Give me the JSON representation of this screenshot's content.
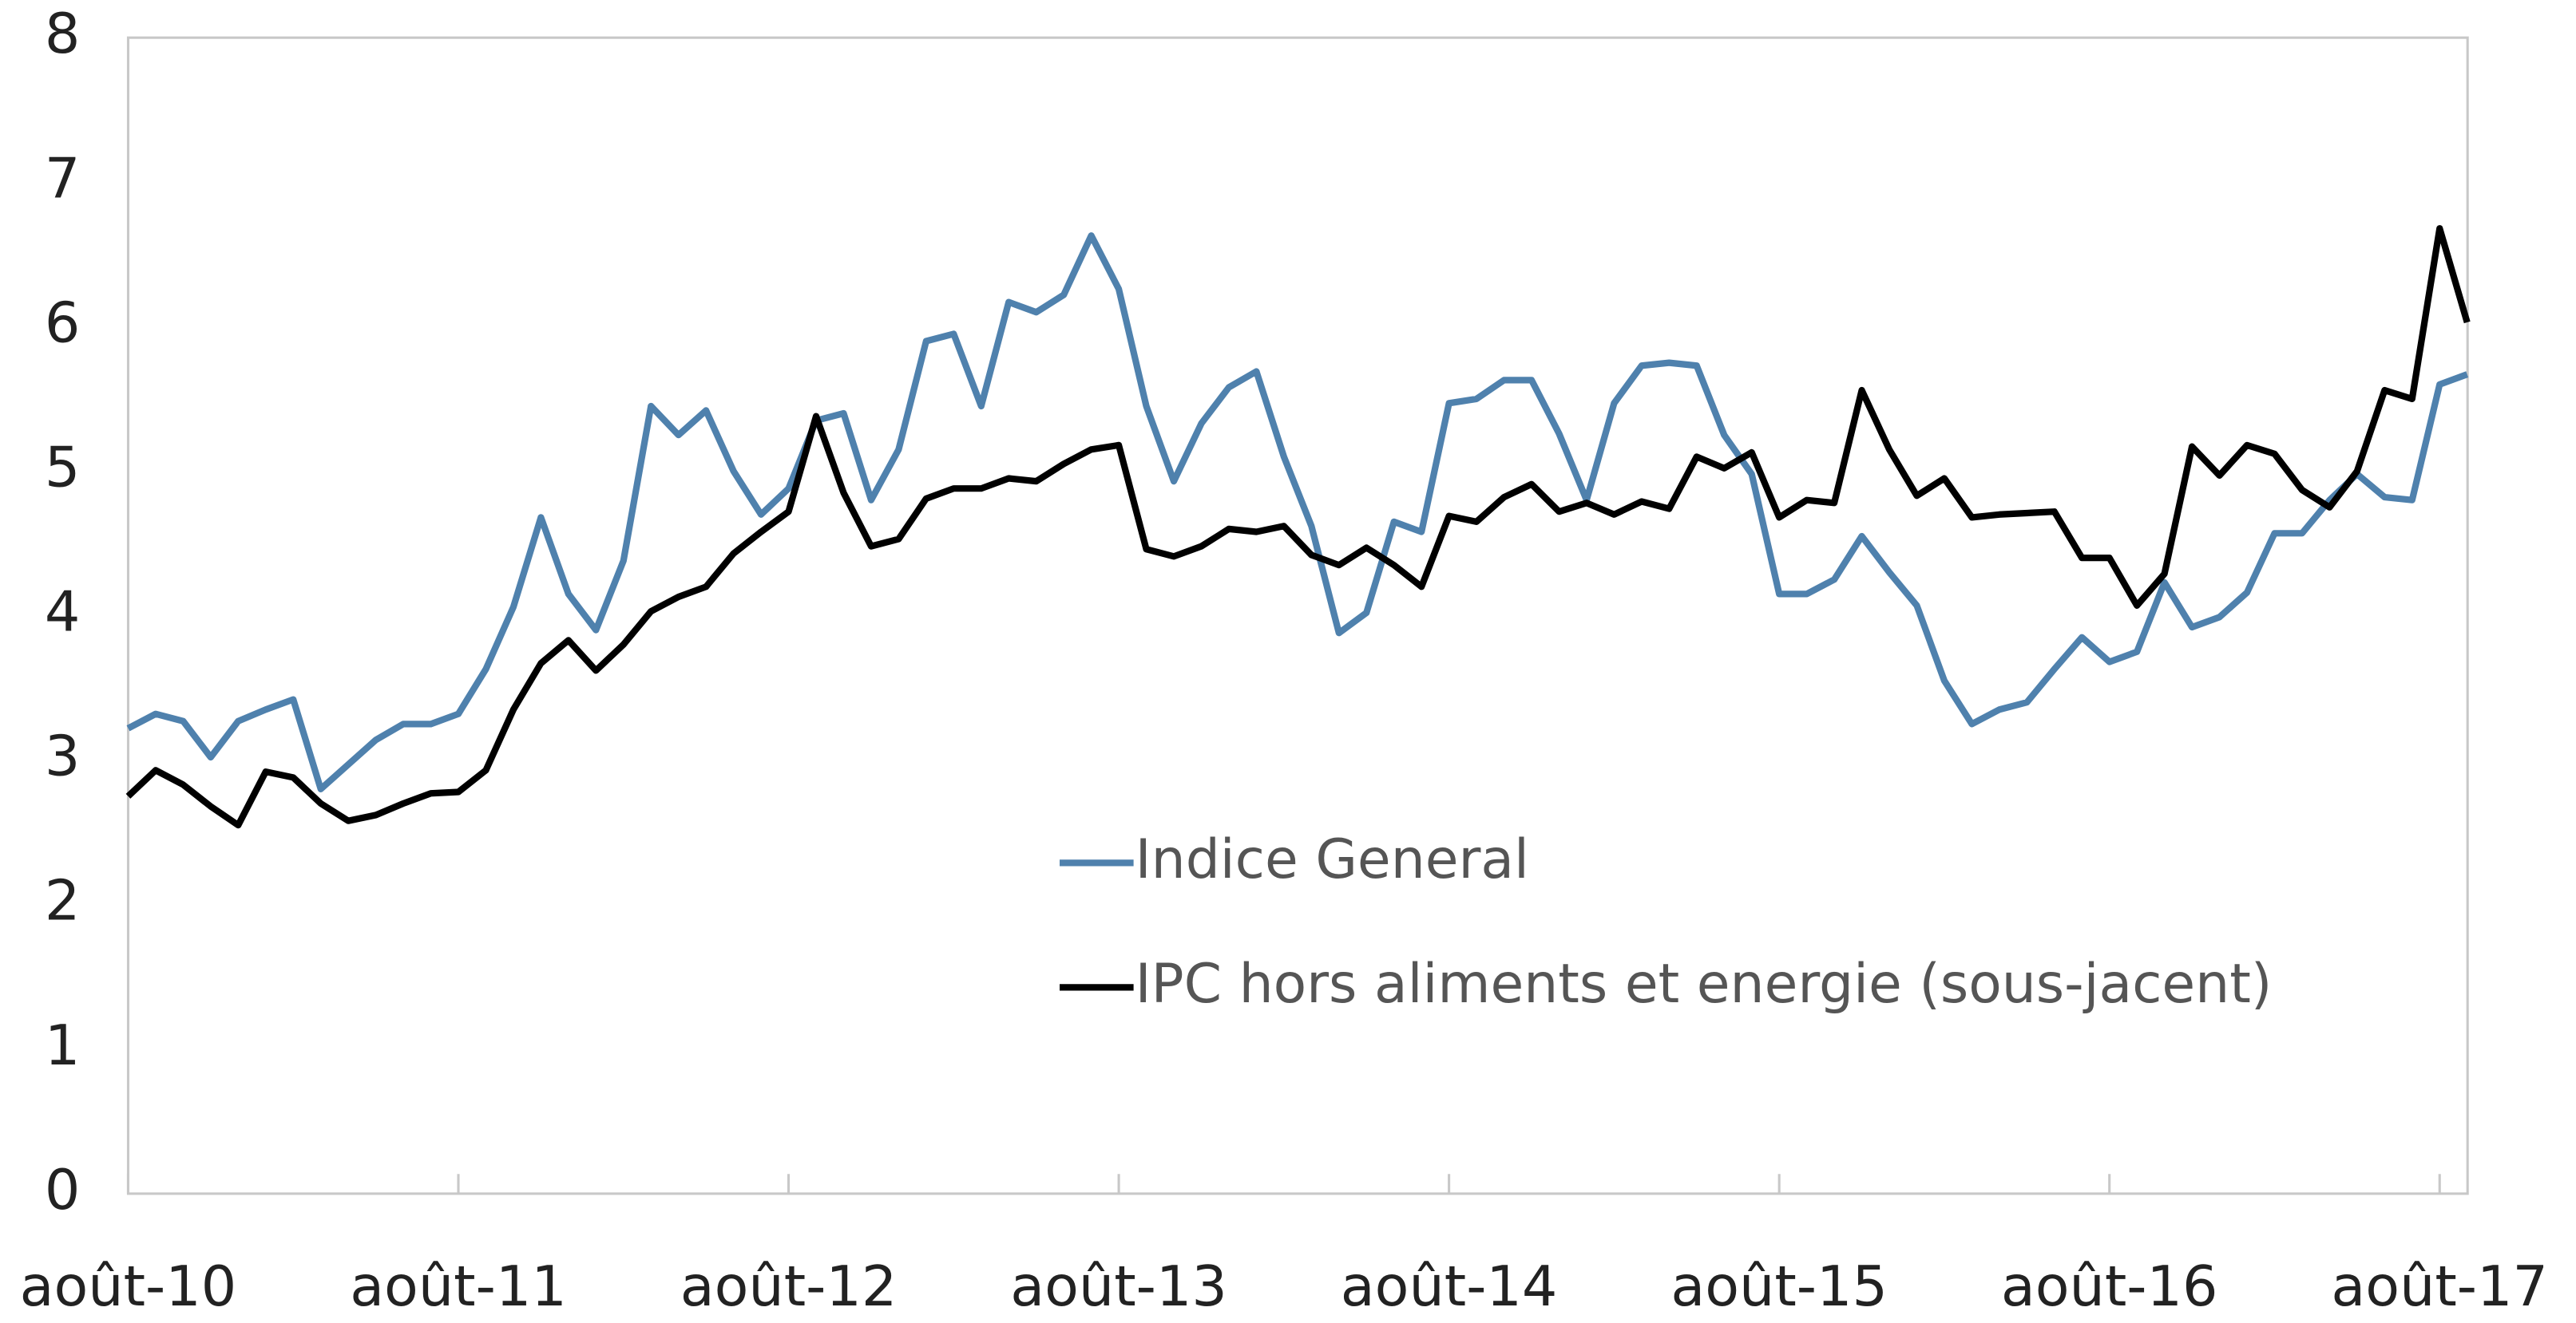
{
  "chart_data": {
    "type": "line",
    "categories": [
      "août-10",
      null,
      null,
      null,
      null,
      null,
      null,
      null,
      null,
      null,
      null,
      null,
      "août-11",
      null,
      null,
      null,
      null,
      null,
      null,
      null,
      null,
      null,
      null,
      null,
      "août-12",
      null,
      null,
      null,
      null,
      null,
      null,
      null,
      null,
      null,
      null,
      null,
      "août-13",
      null,
      null,
      null,
      null,
      null,
      null,
      null,
      null,
      null,
      null,
      null,
      "août-14",
      null,
      null,
      null,
      null,
      null,
      null,
      null,
      null,
      null,
      null,
      null,
      "août-15",
      null,
      null,
      null,
      null,
      null,
      null,
      null,
      null,
      null,
      null,
      null,
      "août-16",
      null,
      null,
      null,
      null,
      null,
      null,
      null,
      null,
      null,
      null,
      null,
      "août-17",
      null
    ],
    "series": [
      {
        "name": "Indice General",
        "color": "#4f81ad",
        "values": [
          3.22,
          3.32,
          3.27,
          3.02,
          3.27,
          3.35,
          3.42,
          2.8,
          2.97,
          3.14,
          3.25,
          3.25,
          3.32,
          3.63,
          4.06,
          4.68,
          4.15,
          3.9,
          4.38,
          5.45,
          5.25,
          5.42,
          5.0,
          4.7,
          4.88,
          5.35,
          5.4,
          4.8,
          5.15,
          5.9,
          5.95,
          5.45,
          6.17,
          6.1,
          6.22,
          6.63,
          6.26,
          5.45,
          4.93,
          5.33,
          5.58,
          5.69,
          5.1,
          4.62,
          3.88,
          4.02,
          4.65,
          4.58,
          5.47,
          5.5,
          5.63,
          5.63,
          5.26,
          4.8,
          5.47,
          5.73,
          5.75,
          5.73,
          5.25,
          4.98,
          4.15,
          4.15,
          4.25,
          4.55,
          4.3,
          4.07,
          3.55,
          3.25,
          3.35,
          3.4,
          3.63,
          3.85,
          3.68,
          3.75,
          4.23,
          3.92,
          3.99,
          4.16,
          4.57,
          4.57,
          4.8,
          4.98,
          4.82,
          4.8,
          5.6,
          5.67
        ]
      },
      {
        "name": "IPC hors aliments et energie (sous-jacent)",
        "color": "#000000",
        "values": [
          2.75,
          2.93,
          2.83,
          2.68,
          2.55,
          2.92,
          2.88,
          2.7,
          2.58,
          2.62,
          2.7,
          2.77,
          2.78,
          2.93,
          3.35,
          3.67,
          3.83,
          3.62,
          3.8,
          4.03,
          4.13,
          4.2,
          4.43,
          4.58,
          4.72,
          5.38,
          4.85,
          4.48,
          4.53,
          4.81,
          4.88,
          4.88,
          4.95,
          4.93,
          5.05,
          5.15,
          5.18,
          4.46,
          4.41,
          4.48,
          4.6,
          4.58,
          4.62,
          4.42,
          4.35,
          4.47,
          4.35,
          4.2,
          4.69,
          4.65,
          4.82,
          4.91,
          4.72,
          4.78,
          4.7,
          4.79,
          4.74,
          5.1,
          5.02,
          5.13,
          4.68,
          4.8,
          4.78,
          5.56,
          5.15,
          4.83,
          4.95,
          4.68,
          4.7,
          4.71,
          4.72,
          4.4,
          4.4,
          4.07,
          4.29,
          5.17,
          4.97,
          5.18,
          5.12,
          4.87,
          4.75,
          5.0,
          5.56,
          5.5,
          6.68,
          6.03
        ]
      }
    ],
    "ylim": [
      0,
      8
    ],
    "yticks": [
      0,
      1,
      2,
      3,
      4,
      5,
      6,
      7,
      8
    ],
    "grid": false
  }
}
